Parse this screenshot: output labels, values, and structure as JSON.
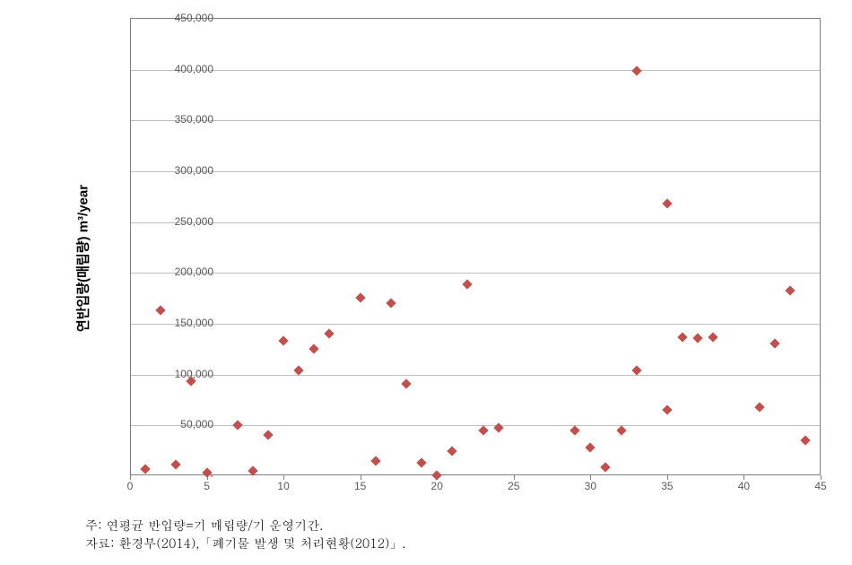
{
  "chart": {
    "type": "scatter",
    "y_axis_label": "연반입량(매립량) m³/year",
    "background_color": "#ffffff",
    "grid_color": "#bfbfbf",
    "border_color": "#808080",
    "axis_text_color": "#595959",
    "label_text_color": "#000000",
    "y_label_fontsize": 15,
    "tick_fontsize": 12,
    "marker_color": "#c0504d",
    "marker_shape": "diamond",
    "marker_size": 8,
    "xlim": [
      0,
      45
    ],
    "ylim": [
      0,
      450000
    ],
    "x_tick_step": 5,
    "y_tick_step": 50000,
    "x_ticks": [
      0,
      5,
      10,
      15,
      20,
      25,
      30,
      35,
      40,
      45
    ],
    "y_ticks": [
      {
        "v": 0,
        "label": "-"
      },
      {
        "v": 50000,
        "label": "50,000"
      },
      {
        "v": 100000,
        "label": "100,000"
      },
      {
        "v": 150000,
        "label": "150,000"
      },
      {
        "v": 200000,
        "label": "200,000"
      },
      {
        "v": 250000,
        "label": "250,000"
      },
      {
        "v": 300000,
        "label": "300,000"
      },
      {
        "v": 350000,
        "label": "350,000"
      },
      {
        "v": 400000,
        "label": "400,000"
      },
      {
        "v": 450000,
        "label": "450,000"
      }
    ],
    "points": [
      {
        "x": 1,
        "y": 6000
      },
      {
        "x": 2,
        "y": 162000
      },
      {
        "x": 3,
        "y": 11000
      },
      {
        "x": 4,
        "y": 93000
      },
      {
        "x": 5,
        "y": 3000
      },
      {
        "x": 7,
        "y": 49000
      },
      {
        "x": 8,
        "y": 4000
      },
      {
        "x": 9,
        "y": 40000
      },
      {
        "x": 10,
        "y": 132000
      },
      {
        "x": 11,
        "y": 103000
      },
      {
        "x": 12,
        "y": 124000
      },
      {
        "x": 13,
        "y": 139000
      },
      {
        "x": 15,
        "y": 175000
      },
      {
        "x": 16,
        "y": 14000
      },
      {
        "x": 17,
        "y": 169000
      },
      {
        "x": 18,
        "y": 90000
      },
      {
        "x": 19,
        "y": 12000
      },
      {
        "x": 20,
        "y": 0
      },
      {
        "x": 21,
        "y": 24000
      },
      {
        "x": 22,
        "y": 188000
      },
      {
        "x": 23,
        "y": 44000
      },
      {
        "x": 24,
        "y": 47000
      },
      {
        "x": 29,
        "y": 44000
      },
      {
        "x": 30,
        "y": 27000
      },
      {
        "x": 31,
        "y": 8000
      },
      {
        "x": 32,
        "y": 44000
      },
      {
        "x": 33,
        "y": 103000
      },
      {
        "x": 33,
        "y": 398000
      },
      {
        "x": 35,
        "y": 64000
      },
      {
        "x": 35,
        "y": 267000
      },
      {
        "x": 36,
        "y": 136000
      },
      {
        "x": 37,
        "y": 135000
      },
      {
        "x": 38,
        "y": 136000
      },
      {
        "x": 41,
        "y": 67000
      },
      {
        "x": 42,
        "y": 130000
      },
      {
        "x": 43,
        "y": 182000
      },
      {
        "x": 44,
        "y": 34000
      }
    ]
  },
  "footnotes": {
    "note1": "주: 연평균 반입량=기 매립량/기 운영기간.",
    "note2": "자료: 환경부(2014),「폐기물 발생 및 처리현황(2012)」."
  }
}
